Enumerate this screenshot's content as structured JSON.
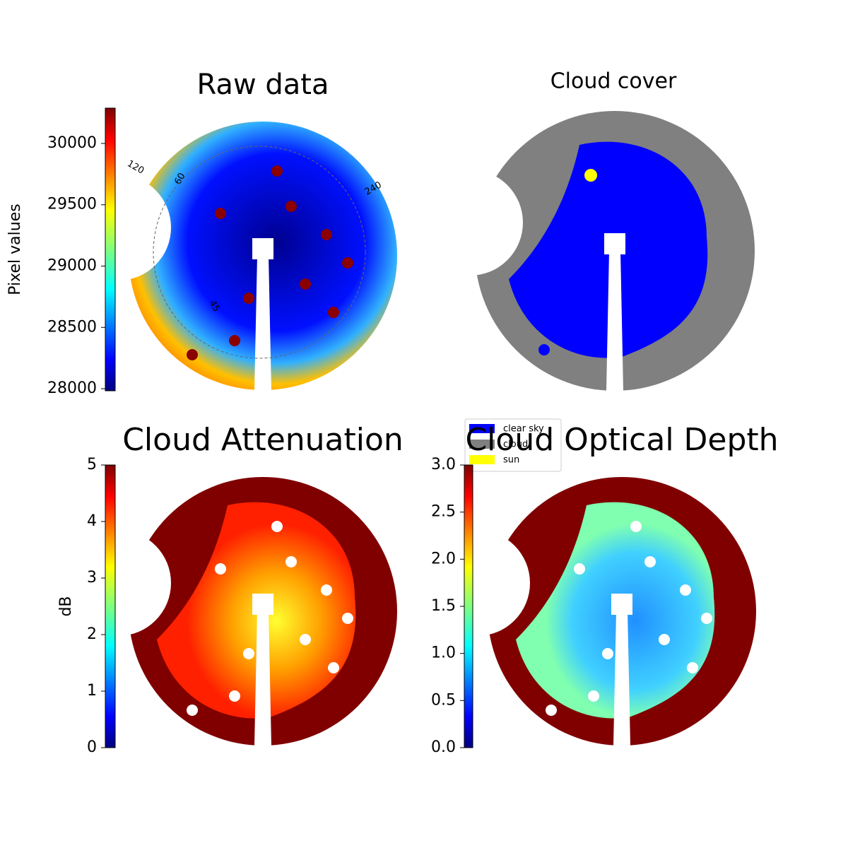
{
  "chart_data": [
    {
      "type": "image",
      "title": "Raw data",
      "ylabel": "Pixel values",
      "ylim": [
        27983,
        30288
      ],
      "yticks": [
        28000,
        28500,
        29000,
        29500,
        30000
      ],
      "annotations": [
        "120",
        "60",
        "240",
        "45"
      ]
    },
    {
      "type": "image",
      "title": "Cloud cover",
      "series": [
        {
          "name": "clear sky",
          "color": "#0000ff"
        },
        {
          "name": "cloud",
          "color": "#808080"
        },
        {
          "name": "sun",
          "color": "#ffff00"
        }
      ]
    },
    {
      "type": "image",
      "title": "Cloud Attenuation",
      "ylabel": "dB",
      "ylim": [
        0,
        5
      ],
      "yticks": [
        0,
        1,
        2,
        3,
        4,
        5
      ]
    },
    {
      "type": "image",
      "title": "Cloud Optical Depth",
      "ylim": [
        0,
        3
      ],
      "yticks": [
        {
          "value": 0,
          "label": "0.0"
        },
        {
          "value": 0.5,
          "label": "0.5"
        },
        {
          "value": 1,
          "label": "1.0"
        },
        {
          "value": 1.5,
          "label": "1.5"
        },
        {
          "value": 2,
          "label": "2.0"
        },
        {
          "value": 2.5,
          "label": "2.5"
        },
        {
          "value": 3,
          "label": "3.0"
        }
      ]
    }
  ]
}
